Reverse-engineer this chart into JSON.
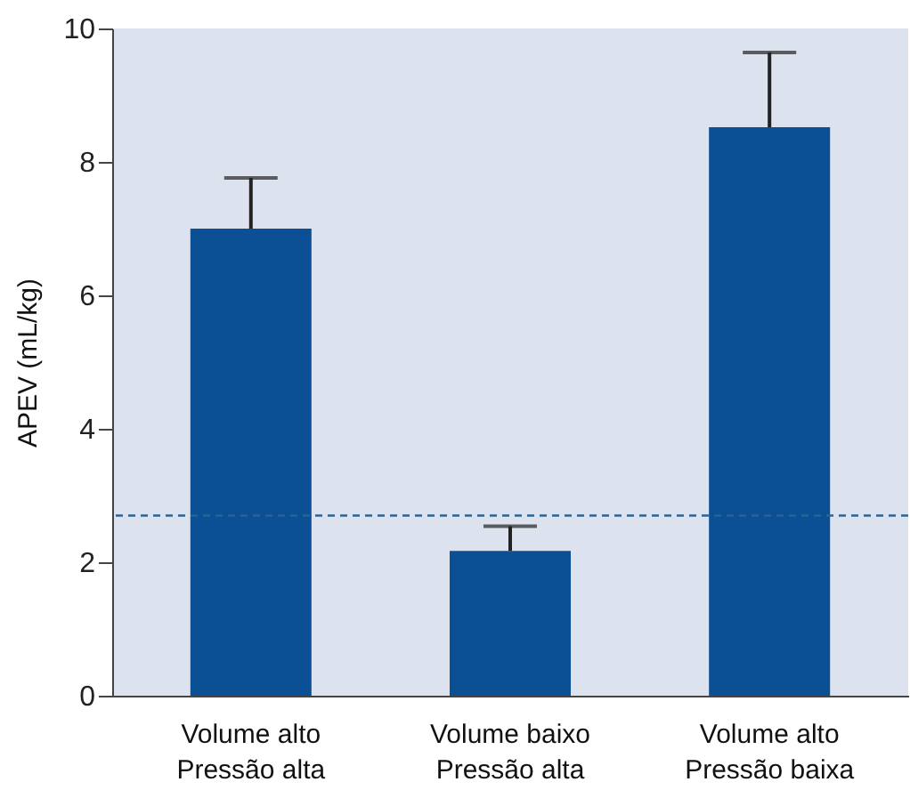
{
  "chart_data": {
    "type": "bar",
    "ylabel": "APEV (mL/kg)",
    "categories": [
      "Volume alto\nPressão alta",
      "Volume baixo\nPressão alta",
      "Volume alto\nPressão baixa"
    ],
    "values": [
      7.0,
      2.17,
      8.52
    ],
    "errors": [
      [
        7.0,
        7.76
      ],
      [
        2.17,
        2.54
      ],
      [
        8.52,
        9.64
      ]
    ],
    "color": "#0b4f94",
    "ylim": [
      0,
      10
    ],
    "yticks": [
      0,
      2,
      4,
      6,
      8,
      10
    ],
    "grid": false,
    "ref_lines": [
      {
        "axis": "y",
        "value": 2.7,
        "color": "#2a6496",
        "line_style": "dashed"
      }
    ]
  }
}
